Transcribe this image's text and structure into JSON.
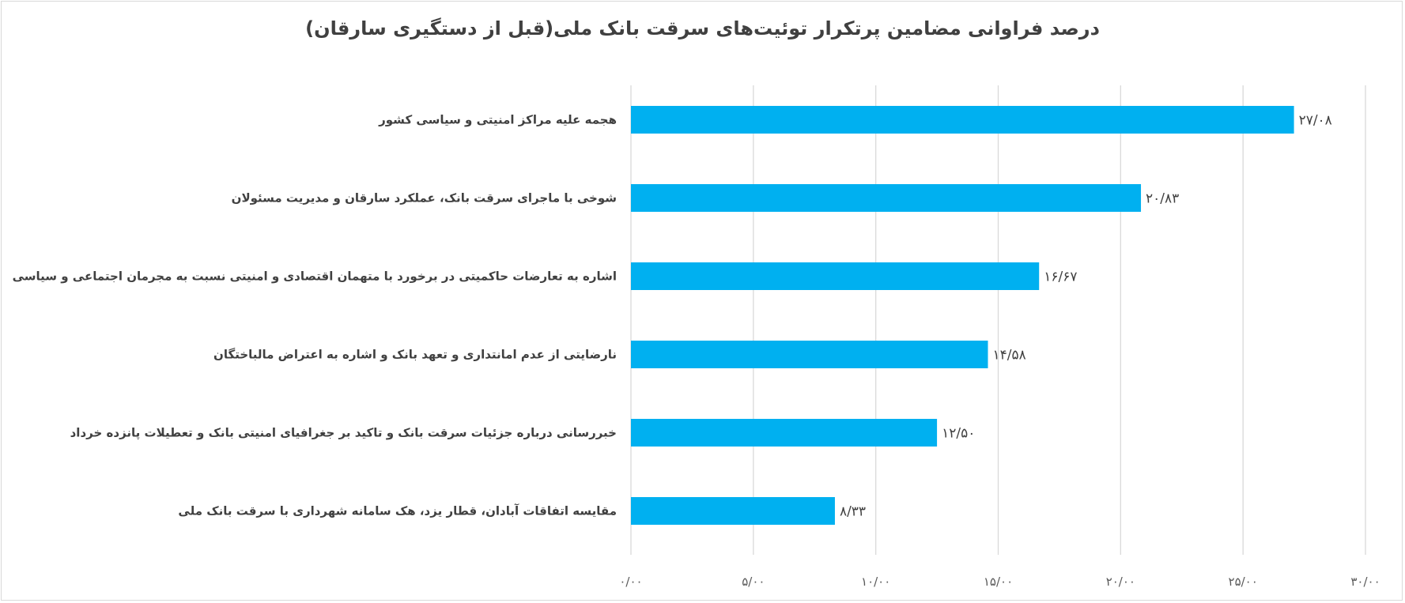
{
  "chart_data": {
    "type": "bar",
    "orientation": "horizontal",
    "title": "درصد فراوانی مضامین پرتکرار توئیت‌های سرقت بانک ملی(قبل از دستگیری سارقان)",
    "categories": [
      "هجمه علیه مراکز امنیتی و سیاسی کشور",
      "شوخی با ماجرای سرقت بانک، عملکرد سارقان و مدیریت مسئولان",
      "اشاره به تعارضات حاکمیتی در برخورد با متهمان اقتصادی و امنیتی نسبت به مجرمان اجتماعی و سیاسی",
      "نارضایتی از عدم امانتداری و تعهد بانک و اشاره به اعتراض مالباختگان",
      "خبررسانی درباره جزئیات سرقت بانک و تاکید بر جغرافیای امنیتی بانک و تعطیلات پانزده خرداد",
      "مقایسه اتفاقات آبادان، قطار یزد، هک سامانه شهرداری با سرقت بانک ملی"
    ],
    "values": [
      27.08,
      20.83,
      16.67,
      14.58,
      12.5,
      8.33
    ],
    "data_labels": [
      "۲۷/۰۸",
      "۲۰/۸۳",
      "۱۶/۶۷",
      "۱۴/۵۸",
      "۱۲/۵۰",
      "۸/۳۳"
    ],
    "xlim": [
      0,
      30
    ],
    "x_ticks": [
      0,
      5,
      10,
      15,
      20,
      25,
      30
    ],
    "x_tick_labels": [
      "۰/۰۰",
      "۵/۰۰",
      "۱۰/۰۰",
      "۱۵/۰۰",
      "۲۰/۰۰",
      "۲۵/۰۰",
      "۳۰/۰۰"
    ],
    "xlabel": "",
    "ylabel": "",
    "grid": "vertical",
    "legend": "none",
    "bar_color": "#00b0f0"
  }
}
